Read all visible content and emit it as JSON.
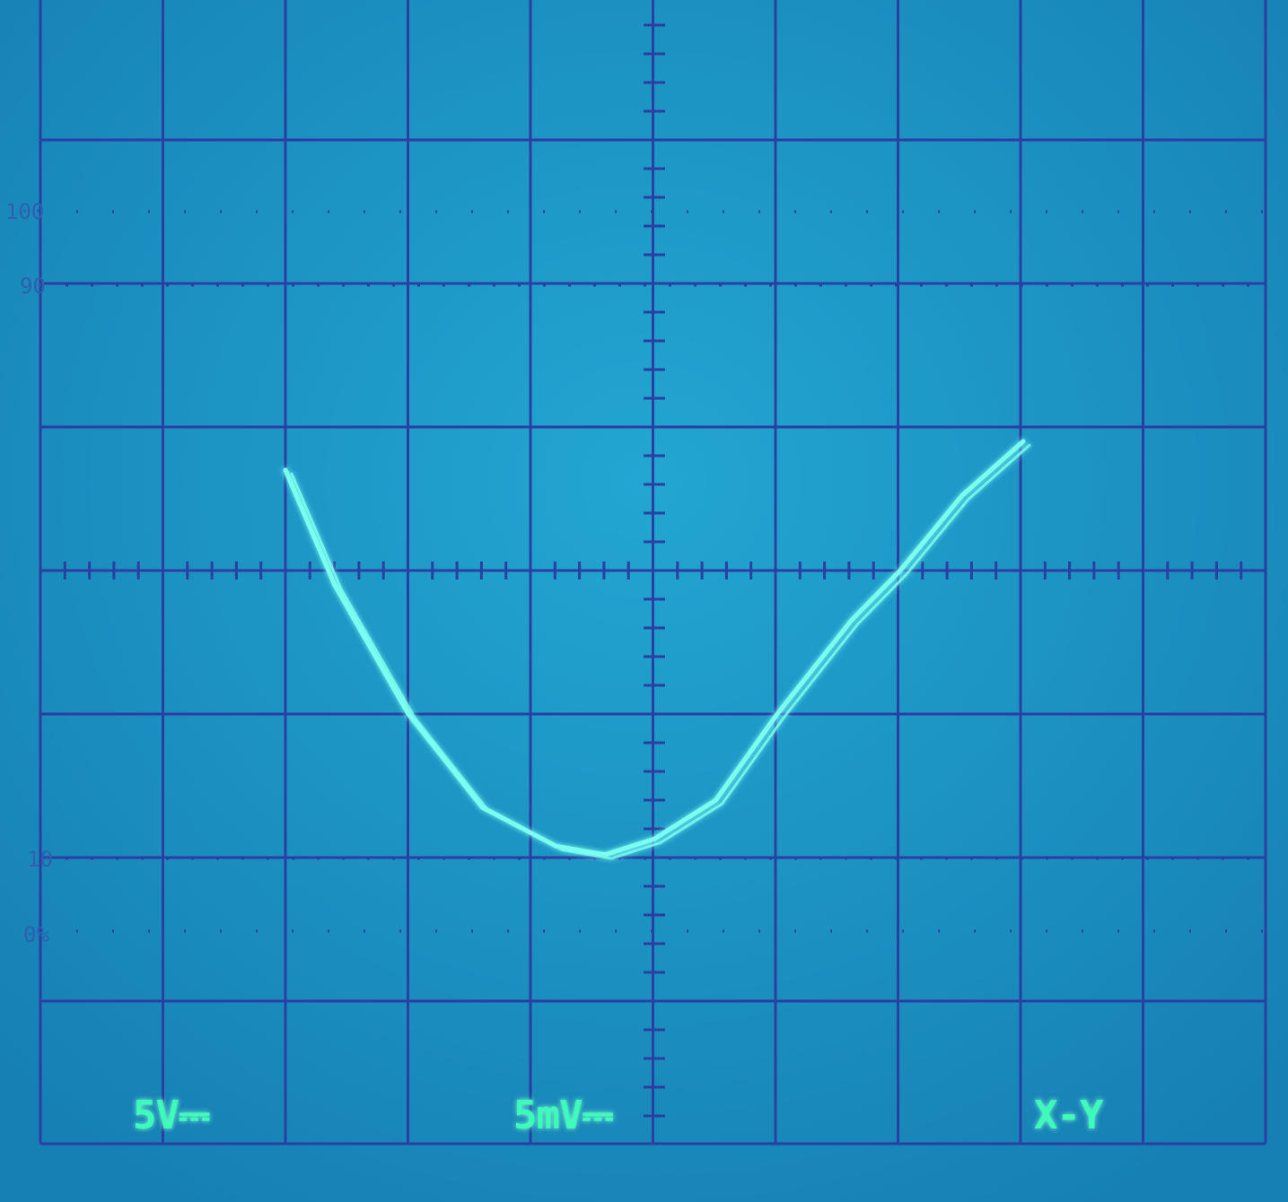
{
  "screen": {
    "background": "#1a8fc0",
    "graticule_color": "#2a3fa0",
    "trace_color": "#7dfff0",
    "readout_color": "#3dfbb8"
  },
  "readouts": {
    "ch1_scale": "5V⎓",
    "ch2_scale": "5mV⎓",
    "mode": "X-Y"
  },
  "percent_marks": {
    "p100": "100",
    "p90": "90",
    "p10": "10",
    "p0": "0%"
  },
  "graticule": {
    "horizontal_divisions": 10,
    "vertical_divisions": 8,
    "minor_ticks_per_division": 5
  },
  "trace": {
    "description_shape": "parabola-like U curve (X-Y mode)",
    "points_div": [
      [
        -3.0,
        0.7
      ],
      [
        -2.6,
        -0.1
      ],
      [
        -2.0,
        -1.0
      ],
      [
        -1.4,
        -1.65
      ],
      [
        -0.8,
        -1.92
      ],
      [
        -0.4,
        -1.98
      ],
      [
        0.0,
        -1.87
      ],
      [
        0.5,
        -1.6
      ],
      [
        1.0,
        -1.0
      ],
      [
        1.6,
        -0.35
      ],
      [
        2.0,
        0.0
      ],
      [
        2.5,
        0.52
      ],
      [
        3.0,
        0.9
      ]
    ]
  }
}
